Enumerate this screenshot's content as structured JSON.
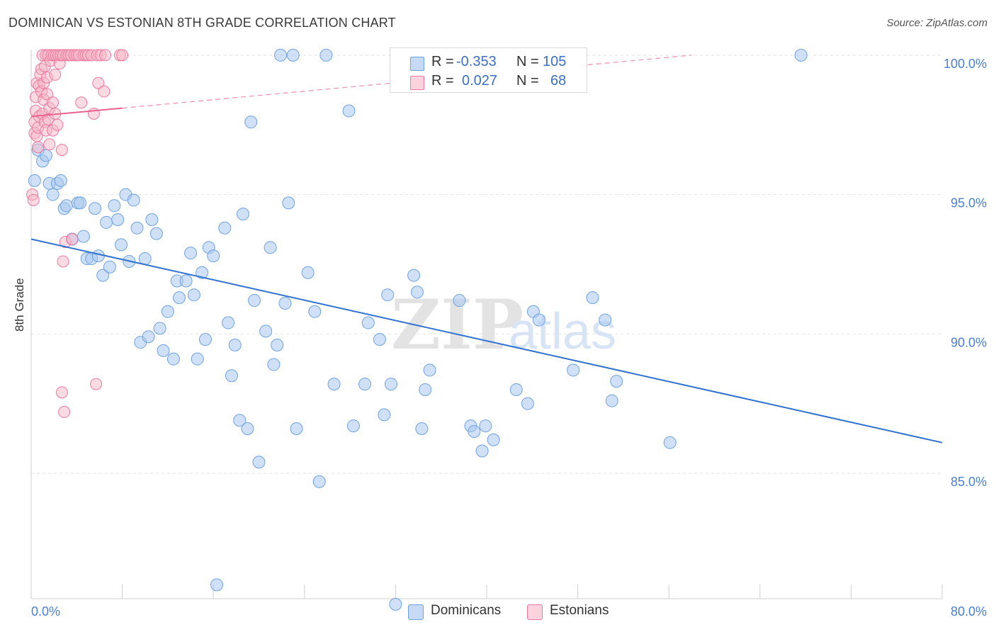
{
  "title": "DOMINICAN VS ESTONIAN 8TH GRADE CORRELATION CHART",
  "source": "Source: ZipAtlas.com",
  "watermark": {
    "zip": "ZIP",
    "atlas": "atlas"
  },
  "legend_top": {
    "rows": [
      {
        "r_label": "R =",
        "r_value": "-0.353",
        "n_label": "N =",
        "n_value": "105",
        "color": "#a9c8f0"
      },
      {
        "r_label": "R =",
        "r_value": "0.027",
        "n_label": "N =",
        "n_value": "68",
        "color": "#f6b6c8"
      }
    ]
  },
  "legend_bottom": {
    "items": [
      {
        "label": "Dominicans",
        "color": "#a9c8f0"
      },
      {
        "label": "Estonians",
        "color": "#f6b6c8"
      }
    ]
  },
  "chart_data": {
    "type": "scatter",
    "title": "DOMINICAN VS ESTONIAN 8TH GRADE CORRELATION CHART",
    "xlabel": "",
    "ylabel": "8th Grade",
    "xlim": [
      0,
      80
    ],
    "ylim": [
      80.5,
      100.2
    ],
    "x_tick_labels": [
      "0.0%",
      "80.0%"
    ],
    "y_ticks": [
      85,
      90,
      95,
      100
    ],
    "y_tick_labels": [
      "85.0%",
      "90.0%",
      "95.0%",
      "100.0%"
    ],
    "grid": true,
    "series": [
      {
        "name": "Dominicans",
        "color": "#6fa3e0",
        "fill": "#a9c8f0",
        "trend": {
          "x": [
            0,
            80
          ],
          "y": [
            93.4,
            86.1
          ]
        },
        "points": [
          [
            0.3,
            95.5
          ],
          [
            0.6,
            96.6
          ],
          [
            1.0,
            96.2
          ],
          [
            1.3,
            96.4
          ],
          [
            1.6,
            95.4
          ],
          [
            1.9,
            95.0
          ],
          [
            2.3,
            95.4
          ],
          [
            2.6,
            95.5
          ],
          [
            2.9,
            94.5
          ],
          [
            3.1,
            94.6
          ],
          [
            3.6,
            93.4
          ],
          [
            4.1,
            94.7
          ],
          [
            4.3,
            94.7
          ],
          [
            4.6,
            93.5
          ],
          [
            4.9,
            92.7
          ],
          [
            5.3,
            92.7
          ],
          [
            5.9,
            92.8
          ],
          [
            5.6,
            94.5
          ],
          [
            6.3,
            92.1
          ],
          [
            6.6,
            94.0
          ],
          [
            6.9,
            92.4
          ],
          [
            7.3,
            94.6
          ],
          [
            7.6,
            94.1
          ],
          [
            7.9,
            93.2
          ],
          [
            8.3,
            95.0
          ],
          [
            8.6,
            92.6
          ],
          [
            9.0,
            94.8
          ],
          [
            9.3,
            93.8
          ],
          [
            9.6,
            89.7
          ],
          [
            10.0,
            92.7
          ],
          [
            10.3,
            89.9
          ],
          [
            10.6,
            94.1
          ],
          [
            11.0,
            93.6
          ],
          [
            11.3,
            90.2
          ],
          [
            11.6,
            89.4
          ],
          [
            12.0,
            90.8
          ],
          [
            12.5,
            89.1
          ],
          [
            12.8,
            91.9
          ],
          [
            13.0,
            91.3
          ],
          [
            13.6,
            91.9
          ],
          [
            14.0,
            92.9
          ],
          [
            14.3,
            91.4
          ],
          [
            14.6,
            89.1
          ],
          [
            15.0,
            92.2
          ],
          [
            15.3,
            89.8
          ],
          [
            15.6,
            93.1
          ],
          [
            16.0,
            92.8
          ],
          [
            16.3,
            81.0
          ],
          [
            17.0,
            93.8
          ],
          [
            17.3,
            90.4
          ],
          [
            17.6,
            88.5
          ],
          [
            17.9,
            89.6
          ],
          [
            18.3,
            86.9
          ],
          [
            18.6,
            94.3
          ],
          [
            19.0,
            86.6
          ],
          [
            19.3,
            97.6
          ],
          [
            19.6,
            91.2
          ],
          [
            20.0,
            85.4
          ],
          [
            20.6,
            90.1
          ],
          [
            21.0,
            93.1
          ],
          [
            21.3,
            88.9
          ],
          [
            21.6,
            89.6
          ],
          [
            21.9,
            100.0
          ],
          [
            22.3,
            91.1
          ],
          [
            22.6,
            94.7
          ],
          [
            23.0,
            100.0
          ],
          [
            23.3,
            86.6
          ],
          [
            24.3,
            92.2
          ],
          [
            24.9,
            90.8
          ],
          [
            25.3,
            84.7
          ],
          [
            25.9,
            100.0
          ],
          [
            26.6,
            88.2
          ],
          [
            27.9,
            98.0
          ],
          [
            28.3,
            86.7
          ],
          [
            29.3,
            88.2
          ],
          [
            29.6,
            90.4
          ],
          [
            30.6,
            89.8
          ],
          [
            31.0,
            87.1
          ],
          [
            31.3,
            91.4
          ],
          [
            31.6,
            88.2
          ],
          [
            32.0,
            80.3
          ],
          [
            32.6,
            100.0
          ],
          [
            33.6,
            92.1
          ],
          [
            33.9,
            91.5
          ],
          [
            34.3,
            86.6
          ],
          [
            34.6,
            88.0
          ],
          [
            35.0,
            88.7
          ],
          [
            37.6,
            91.2
          ],
          [
            38.6,
            86.7
          ],
          [
            38.9,
            86.5
          ],
          [
            39.6,
            85.8
          ],
          [
            39.9,
            86.7
          ],
          [
            40.6,
            86.2
          ],
          [
            42.6,
            88.0
          ],
          [
            43.6,
            87.5
          ],
          [
            44.1,
            90.8
          ],
          [
            44.6,
            90.5
          ],
          [
            47.6,
            88.7
          ],
          [
            49.3,
            91.3
          ],
          [
            50.4,
            90.5
          ],
          [
            51.0,
            87.6
          ],
          [
            51.4,
            88.3
          ],
          [
            56.1,
            86.1
          ],
          [
            67.6,
            100.0
          ]
        ]
      },
      {
        "name": "Estonians",
        "color": "#ec7aa0",
        "fill": "#f6b6c8",
        "trend": {
          "x": [
            0,
            8
          ],
          "y": [
            97.8,
            98.1
          ]
        },
        "trend_extension": {
          "x": [
            8,
            58
          ],
          "y": [
            98.1,
            100.0
          ]
        },
        "points": [
          [
            0.1,
            95.0
          ],
          [
            0.2,
            94.8
          ],
          [
            0.3,
            97.2
          ],
          [
            0.3,
            97.6
          ],
          [
            0.4,
            98.0
          ],
          [
            0.4,
            98.5
          ],
          [
            0.5,
            97.1
          ],
          [
            0.5,
            99.0
          ],
          [
            0.6,
            96.7
          ],
          [
            0.6,
            97.4
          ],
          [
            0.7,
            98.9
          ],
          [
            0.7,
            97.8
          ],
          [
            0.8,
            99.3
          ],
          [
            0.9,
            98.7
          ],
          [
            0.9,
            99.5
          ],
          [
            1.0,
            97.9
          ],
          [
            1.0,
            100.0
          ],
          [
            1.1,
            99.0
          ],
          [
            1.1,
            98.4
          ],
          [
            1.2,
            97.6
          ],
          [
            1.2,
            99.6
          ],
          [
            1.3,
            100.0
          ],
          [
            1.3,
            97.3
          ],
          [
            1.4,
            98.6
          ],
          [
            1.4,
            99.2
          ],
          [
            1.5,
            97.7
          ],
          [
            1.5,
            100.0
          ],
          [
            1.6,
            98.1
          ],
          [
            1.6,
            96.8
          ],
          [
            1.7,
            99.8
          ],
          [
            1.8,
            100.0
          ],
          [
            1.9,
            98.3
          ],
          [
            1.9,
            97.3
          ],
          [
            2.0,
            100.0
          ],
          [
            2.1,
            97.9
          ],
          [
            2.1,
            99.3
          ],
          [
            2.2,
            100.0
          ],
          [
            2.3,
            97.5
          ],
          [
            2.4,
            100.0
          ],
          [
            2.5,
            99.7
          ],
          [
            2.6,
            100.0
          ],
          [
            2.7,
            87.9
          ],
          [
            2.7,
            96.6
          ],
          [
            2.8,
            92.6
          ],
          [
            2.8,
            100.0
          ],
          [
            2.9,
            87.2
          ],
          [
            3.0,
            93.3
          ],
          [
            3.1,
            100.0
          ],
          [
            3.3,
            100.0
          ],
          [
            3.5,
            100.0
          ],
          [
            3.6,
            93.4
          ],
          [
            3.8,
            100.0
          ],
          [
            4.0,
            100.0
          ],
          [
            4.2,
            100.0
          ],
          [
            4.4,
            98.3
          ],
          [
            4.6,
            100.0
          ],
          [
            4.8,
            100.0
          ],
          [
            5.0,
            100.0
          ],
          [
            5.3,
            100.0
          ],
          [
            5.5,
            97.9
          ],
          [
            5.7,
            88.2
          ],
          [
            5.8,
            100.0
          ],
          [
            5.9,
            99.0
          ],
          [
            6.1,
            100.0
          ],
          [
            6.4,
            98.7
          ],
          [
            6.5,
            100.0
          ],
          [
            7.8,
            100.0
          ],
          [
            8.0,
            100.0
          ]
        ]
      }
    ]
  }
}
